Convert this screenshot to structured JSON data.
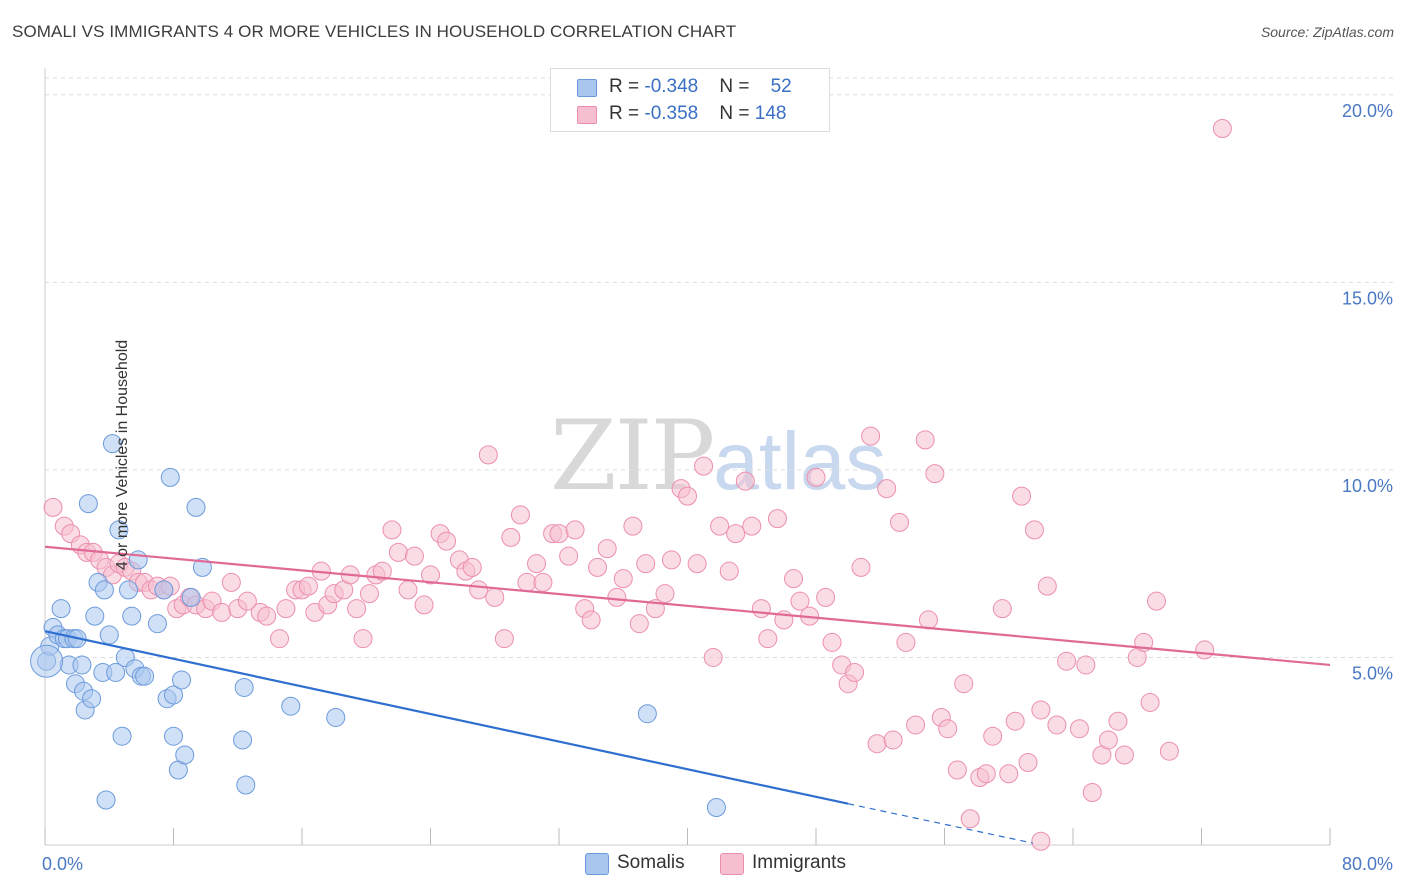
{
  "header": {
    "title": "SOMALI VS IMMIGRANTS 4 OR MORE VEHICLES IN HOUSEHOLD CORRELATION CHART",
    "source": "Source: ZipAtlas.com"
  },
  "watermark": {
    "zip": "ZIP",
    "atlas": "atlas"
  },
  "legend": {
    "rows": [
      {
        "r_label": "R = ",
        "r_value": "-0.348",
        "n_label": "N = ",
        "n_value": "52"
      },
      {
        "r_label": "R = ",
        "r_value": "-0.358",
        "n_label": "N = ",
        "n_value": "148"
      }
    ]
  },
  "bottom_legend": {
    "somalis": "Somalis",
    "immigrants": "Immigrants"
  },
  "colors": {
    "somalis_fill": "#a9c6ee",
    "somalis_stroke": "#6b9bdc",
    "somalis_line": "#2f6fd0",
    "immigrants_fill": "#f6bfd0",
    "immigrants_stroke": "#ec8fae",
    "immigrants_line": "#e06a95",
    "grid": "#dcdcdc",
    "axis_text": "#4a78c2"
  },
  "chart_data": {
    "type": "scatter",
    "title": "SOMALI VS IMMIGRANTS 4 OR MORE VEHICLES IN HOUSEHOLD CORRELATION CHART",
    "xlabel": "",
    "ylabel": "4 or more Vehicles in Household",
    "xlim": [
      0,
      80
    ],
    "ylim": [
      0,
      20.5
    ],
    "x_ticks": [
      "0.0%",
      "80.0%"
    ],
    "y_ticks": [
      {
        "value": 5,
        "label": "5.0%"
      },
      {
        "value": 10,
        "label": "10.0%"
      },
      {
        "value": 15,
        "label": "15.0%"
      },
      {
        "value": 20,
        "label": "20.0%"
      }
    ],
    "grid": true,
    "legend_position": "top-center",
    "series": [
      {
        "name": "Somalis",
        "r": -0.348,
        "n": 52,
        "trend": {
          "x0": 0,
          "y0": 5.7,
          "x1": 50,
          "y1": 1.1,
          "dash_to_x": 61.5,
          "dash_to_y": 0.05
        },
        "points": [
          [
            0.1,
            4.9
          ],
          [
            0.3,
            5.3
          ],
          [
            0.5,
            5.8
          ],
          [
            0.8,
            5.6
          ],
          [
            1.0,
            6.3
          ],
          [
            1.2,
            5.5
          ],
          [
            1.4,
            5.5
          ],
          [
            1.5,
            4.8
          ],
          [
            1.8,
            5.5
          ],
          [
            1.9,
            4.3
          ],
          [
            2.0,
            5.5
          ],
          [
            2.3,
            4.8
          ],
          [
            2.4,
            4.1
          ],
          [
            2.5,
            3.6
          ],
          [
            2.7,
            9.1
          ],
          [
            2.9,
            3.9
          ],
          [
            3.1,
            6.1
          ],
          [
            3.3,
            7.0
          ],
          [
            3.6,
            4.6
          ],
          [
            3.7,
            6.8
          ],
          [
            4.0,
            5.6
          ],
          [
            4.2,
            10.7
          ],
          [
            4.4,
            4.6
          ],
          [
            4.6,
            8.4
          ],
          [
            4.8,
            2.9
          ],
          [
            5.0,
            5.0
          ],
          [
            5.2,
            6.8
          ],
          [
            5.4,
            6.1
          ],
          [
            5.6,
            4.7
          ],
          [
            5.8,
            7.6
          ],
          [
            6.0,
            4.5
          ],
          [
            6.2,
            4.5
          ],
          [
            7.0,
            5.9
          ],
          [
            7.4,
            6.8
          ],
          [
            7.6,
            3.9
          ],
          [
            7.8,
            9.8
          ],
          [
            8.0,
            4.0
          ],
          [
            8.0,
            2.9
          ],
          [
            8.3,
            2.0
          ],
          [
            8.5,
            4.4
          ],
          [
            8.7,
            2.4
          ],
          [
            9.1,
            6.6
          ],
          [
            9.4,
            9.0
          ],
          [
            9.8,
            7.4
          ],
          [
            12.3,
            2.8
          ],
          [
            12.4,
            4.2
          ],
          [
            12.5,
            1.6
          ],
          [
            15.3,
            3.7
          ],
          [
            18.1,
            3.4
          ],
          [
            37.5,
            3.5
          ],
          [
            41.8,
            1.0
          ],
          [
            3.8,
            1.2
          ]
        ]
      },
      {
        "name": "Immigrants",
        "r": -0.358,
        "n": 148,
        "trend": {
          "x0": 0,
          "y0": 7.95,
          "x1": 80,
          "y1": 4.8
        },
        "points": [
          [
            0.5,
            9.0
          ],
          [
            1.2,
            8.5
          ],
          [
            1.6,
            8.3
          ],
          [
            2.2,
            8.0
          ],
          [
            2.6,
            7.8
          ],
          [
            3.0,
            7.8
          ],
          [
            3.4,
            7.6
          ],
          [
            3.8,
            7.4
          ],
          [
            4.2,
            7.2
          ],
          [
            4.6,
            7.5
          ],
          [
            5.0,
            7.4
          ],
          [
            5.4,
            7.3
          ],
          [
            5.8,
            7.0
          ],
          [
            6.2,
            7.0
          ],
          [
            6.6,
            6.8
          ],
          [
            7.0,
            6.9
          ],
          [
            7.4,
            6.8
          ],
          [
            7.8,
            6.9
          ],
          [
            8.2,
            6.3
          ],
          [
            8.6,
            6.4
          ],
          [
            9.0,
            6.6
          ],
          [
            9.4,
            6.4
          ],
          [
            10.0,
            6.3
          ],
          [
            10.4,
            6.5
          ],
          [
            11.0,
            6.2
          ],
          [
            11.6,
            7.0
          ],
          [
            12.0,
            6.3
          ],
          [
            12.6,
            6.5
          ],
          [
            13.4,
            6.2
          ],
          [
            13.8,
            6.1
          ],
          [
            14.6,
            5.5
          ],
          [
            15.0,
            6.3
          ],
          [
            15.6,
            6.8
          ],
          [
            16.0,
            6.8
          ],
          [
            16.4,
            6.9
          ],
          [
            16.8,
            6.2
          ],
          [
            17.2,
            7.3
          ],
          [
            17.6,
            6.4
          ],
          [
            18.0,
            6.7
          ],
          [
            18.6,
            6.8
          ],
          [
            19.0,
            7.2
          ],
          [
            19.4,
            6.3
          ],
          [
            19.8,
            5.5
          ],
          [
            20.2,
            6.7
          ],
          [
            20.6,
            7.2
          ],
          [
            21.0,
            7.3
          ],
          [
            21.6,
            8.4
          ],
          [
            22.0,
            7.8
          ],
          [
            22.6,
            6.8
          ],
          [
            23.0,
            7.7
          ],
          [
            23.6,
            6.4
          ],
          [
            24.0,
            7.2
          ],
          [
            24.6,
            8.3
          ],
          [
            25.0,
            8.1
          ],
          [
            25.8,
            7.6
          ],
          [
            26.2,
            7.3
          ],
          [
            26.6,
            7.4
          ],
          [
            27.0,
            6.8
          ],
          [
            27.6,
            10.4
          ],
          [
            28.0,
            6.6
          ],
          [
            28.6,
            5.5
          ],
          [
            29.0,
            8.2
          ],
          [
            29.6,
            8.8
          ],
          [
            30.0,
            7.0
          ],
          [
            30.6,
            7.5
          ],
          [
            31.0,
            7.0
          ],
          [
            31.6,
            8.3
          ],
          [
            32.0,
            8.3
          ],
          [
            32.6,
            7.7
          ],
          [
            33.0,
            8.4
          ],
          [
            33.6,
            6.3
          ],
          [
            34.0,
            6.0
          ],
          [
            34.4,
            7.4
          ],
          [
            35.0,
            7.9
          ],
          [
            35.6,
            6.6
          ],
          [
            36.0,
            7.1
          ],
          [
            36.6,
            8.5
          ],
          [
            37.0,
            5.9
          ],
          [
            37.4,
            7.5
          ],
          [
            38.0,
            6.3
          ],
          [
            38.6,
            6.7
          ],
          [
            39.0,
            7.6
          ],
          [
            39.6,
            9.5
          ],
          [
            40.0,
            9.3
          ],
          [
            40.6,
            7.5
          ],
          [
            41.0,
            10.1
          ],
          [
            41.6,
            5.0
          ],
          [
            42.0,
            8.5
          ],
          [
            42.6,
            7.3
          ],
          [
            43.0,
            8.3
          ],
          [
            43.6,
            9.7
          ],
          [
            44.0,
            8.5
          ],
          [
            44.6,
            6.3
          ],
          [
            45.0,
            5.5
          ],
          [
            45.6,
            8.7
          ],
          [
            46.0,
            6.0
          ],
          [
            46.6,
            7.1
          ],
          [
            47.0,
            6.5
          ],
          [
            47.6,
            6.1
          ],
          [
            48.0,
            9.8
          ],
          [
            48.6,
            6.6
          ],
          [
            49.0,
            5.4
          ],
          [
            49.6,
            4.8
          ],
          [
            50.0,
            4.3
          ],
          [
            50.4,
            4.6
          ],
          [
            50.8,
            7.4
          ],
          [
            51.4,
            10.9
          ],
          [
            51.8,
            2.7
          ],
          [
            52.4,
            9.5
          ],
          [
            52.8,
            2.8
          ],
          [
            53.2,
            8.6
          ],
          [
            53.6,
            5.4
          ],
          [
            54.2,
            3.2
          ],
          [
            54.8,
            10.8
          ],
          [
            55.0,
            6.0
          ],
          [
            55.4,
            9.9
          ],
          [
            55.8,
            3.4
          ],
          [
            56.2,
            3.1
          ],
          [
            56.8,
            2.0
          ],
          [
            57.2,
            4.3
          ],
          [
            57.6,
            0.7
          ],
          [
            58.2,
            1.8
          ],
          [
            58.6,
            1.9
          ],
          [
            59.0,
            2.9
          ],
          [
            59.6,
            6.3
          ],
          [
            60.0,
            1.9
          ],
          [
            60.4,
            3.3
          ],
          [
            60.8,
            9.3
          ],
          [
            61.2,
            2.2
          ],
          [
            61.6,
            8.4
          ],
          [
            62.0,
            3.6
          ],
          [
            62.4,
            6.9
          ],
          [
            63.0,
            3.2
          ],
          [
            63.6,
            4.9
          ],
          [
            64.4,
            3.1
          ],
          [
            64.8,
            4.8
          ],
          [
            65.2,
            1.4
          ],
          [
            65.8,
            2.4
          ],
          [
            66.2,
            2.8
          ],
          [
            66.8,
            3.3
          ],
          [
            67.2,
            2.4
          ],
          [
            68.0,
            5.0
          ],
          [
            68.4,
            5.4
          ],
          [
            68.8,
            3.8
          ],
          [
            69.2,
            6.5
          ],
          [
            70.0,
            2.5
          ],
          [
            72.2,
            5.2
          ],
          [
            73.3,
            19.1
          ],
          [
            62.0,
            0.1
          ]
        ]
      }
    ]
  }
}
